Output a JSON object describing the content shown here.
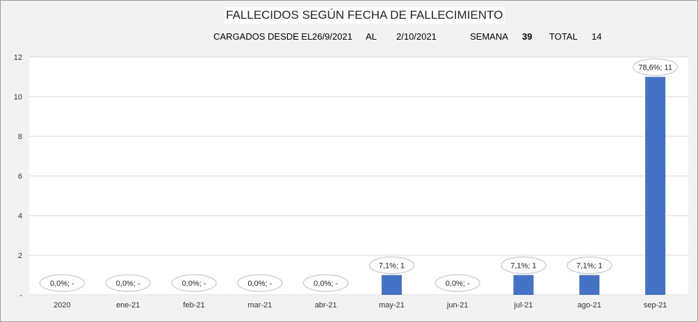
{
  "header": {
    "title": "FALLECIDOS SEGÚN FECHA DE FALLECIMIENTO",
    "loaded_label": "CARGADOS DESDE EL",
    "from_date": "26/9/2021",
    "to_label": "AL",
    "to_date": "2/10/2021",
    "week_label": "SEMANA",
    "week_value": "39",
    "total_label": "TOTAL",
    "total_value": "14"
  },
  "chart_data": {
    "type": "bar",
    "title": "FALLECIDOS SEGÚN FECHA DE FALLECIMIENTO",
    "categories": [
      "2020",
      "ene-21",
      "feb-21",
      "mar-21",
      "abr-21",
      "may-21",
      "jun-21",
      "jul-21",
      "ago-21",
      "sep-21"
    ],
    "values": [
      0,
      0,
      0,
      0,
      0,
      1,
      0,
      1,
      1,
      11
    ],
    "data_labels": [
      "0,0%; -",
      "0,0%; -",
      "0,0%; -",
      "0,0%; -",
      "0,0%; -",
      "7,1%; 1",
      "0,0%; -",
      "7,1%; 1",
      "7,1%; 1",
      "78,6%; 11"
    ],
    "yticks": [
      "-",
      "2",
      "4",
      "6",
      "8",
      "10",
      "12"
    ],
    "ylim": [
      0,
      12
    ],
    "grid": true,
    "legend": "none",
    "bar_color": "#4472c4"
  }
}
